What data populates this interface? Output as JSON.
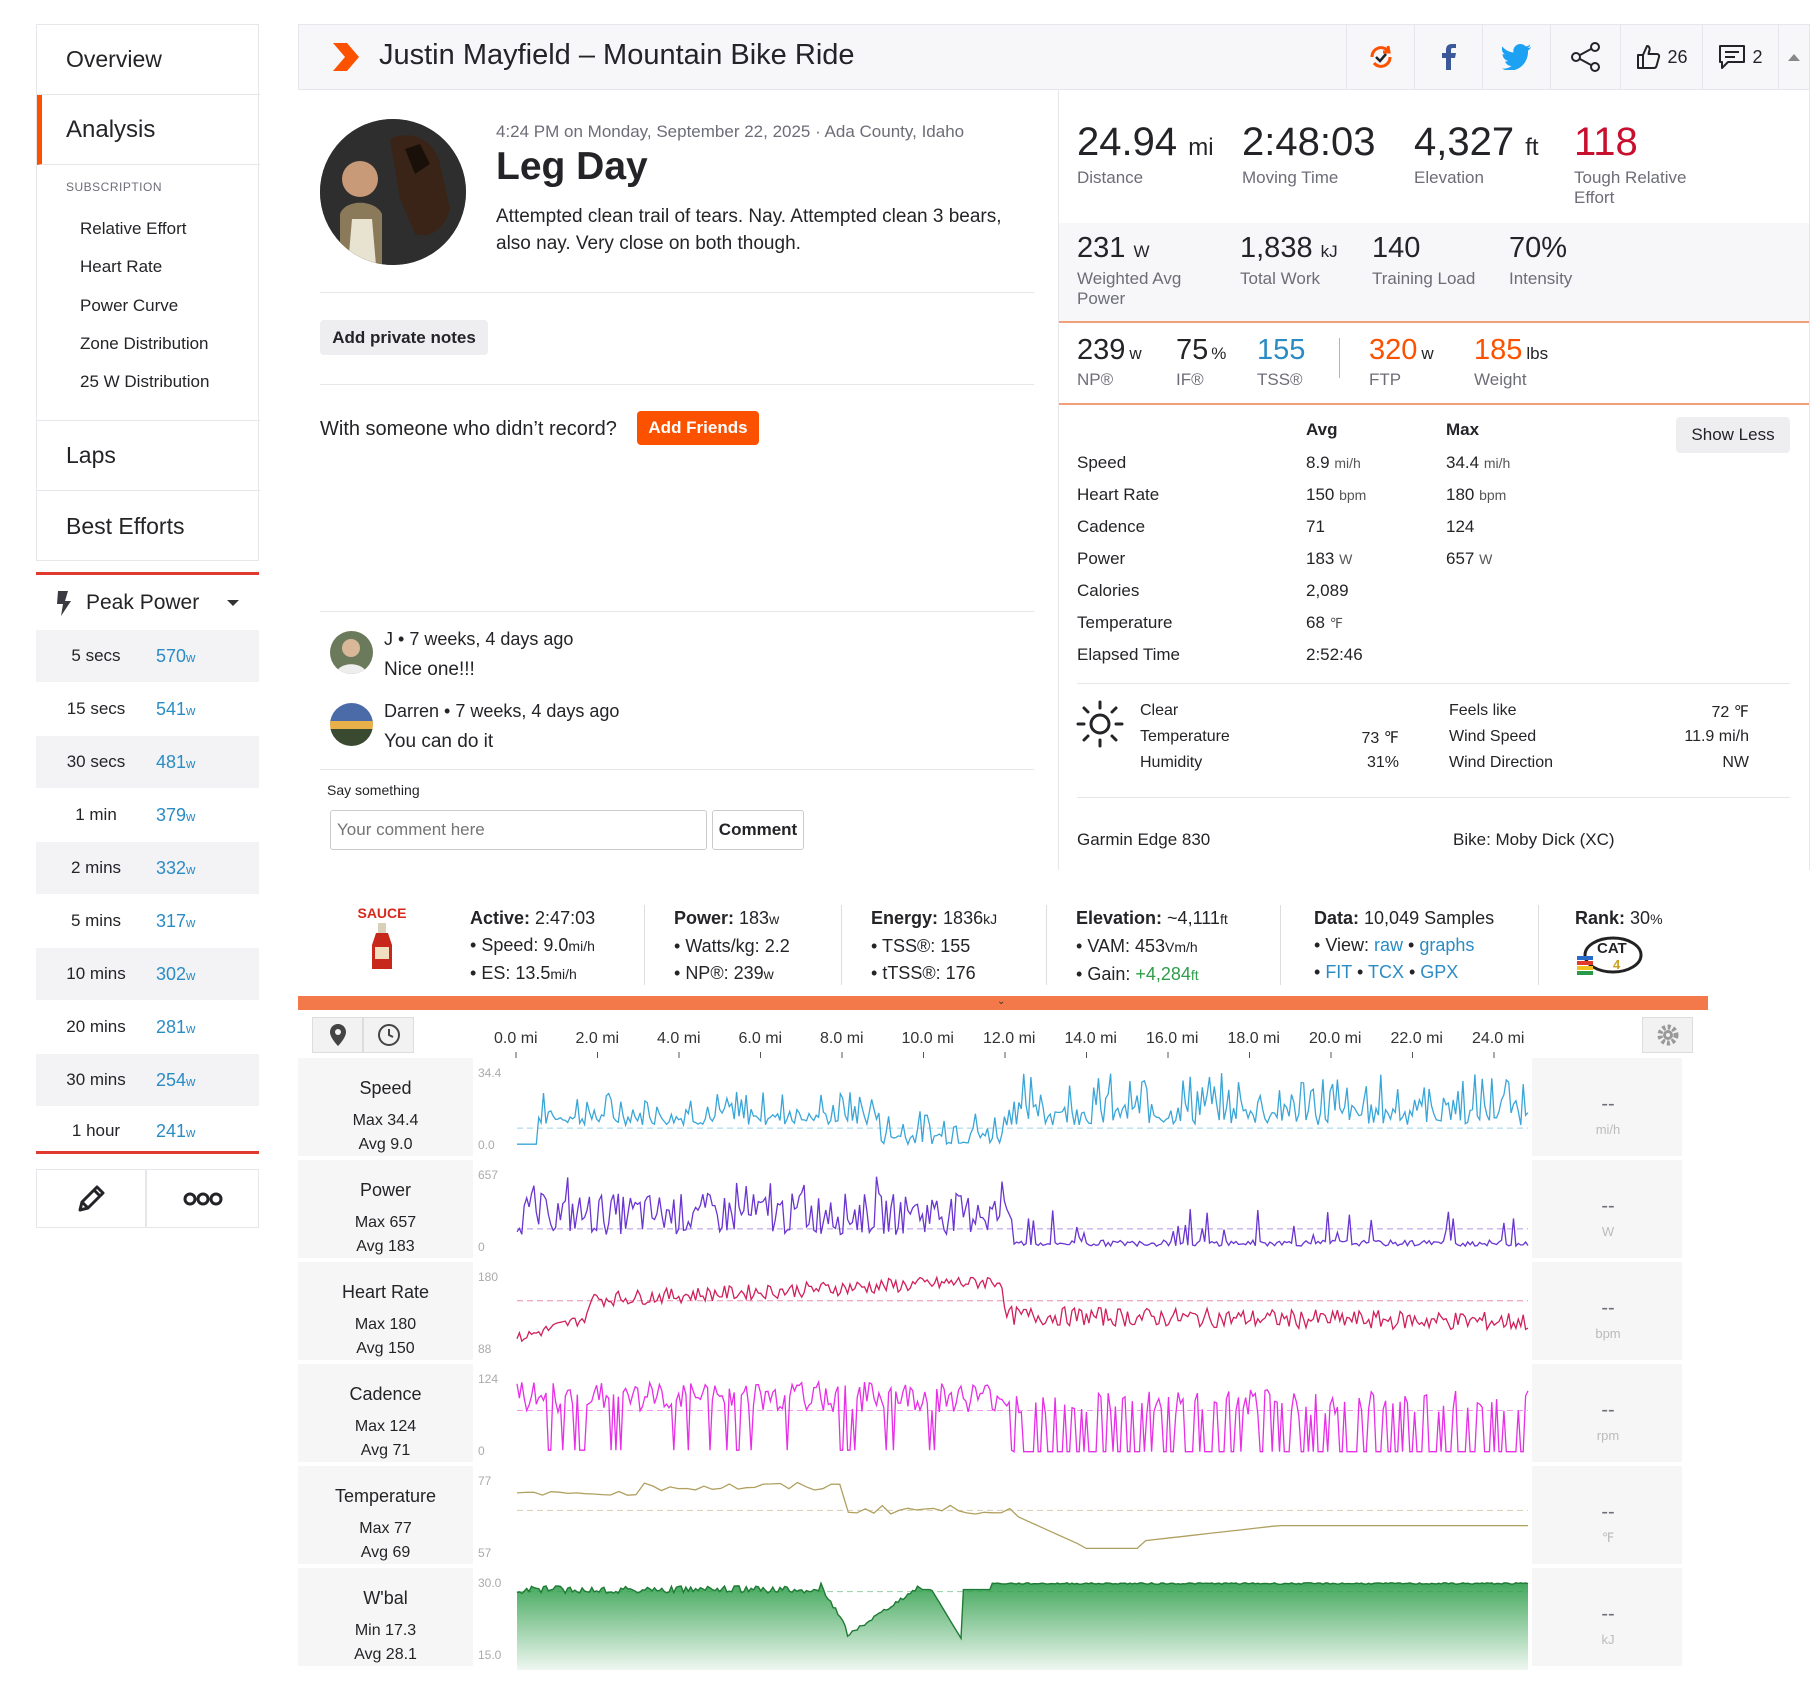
{
  "sidebar": {
    "overview": "Overview",
    "analysis": "Analysis",
    "subscription_heading": "SUBSCRIPTION",
    "sub_items": [
      "Relative Effort",
      "Heart Rate",
      "Power Curve",
      "Zone Distribution",
      "25 W Distribution"
    ],
    "laps": "Laps",
    "best_efforts": "Best Efforts",
    "peak_power_label": "Peak Power",
    "peak_rows": [
      {
        "dur": "5 secs",
        "val": "570",
        "unit": "w"
      },
      {
        "dur": "15 secs",
        "val": "541",
        "unit": "w"
      },
      {
        "dur": "30 secs",
        "val": "481",
        "unit": "w"
      },
      {
        "dur": "1 min",
        "val": "379",
        "unit": "w"
      },
      {
        "dur": "2 mins",
        "val": "332",
        "unit": "w"
      },
      {
        "dur": "5 mins",
        "val": "317",
        "unit": "w"
      },
      {
        "dur": "10 mins",
        "val": "302",
        "unit": "w"
      },
      {
        "dur": "20 mins",
        "val": "281",
        "unit": "w"
      },
      {
        "dur": "30 mins",
        "val": "254",
        "unit": "w"
      },
      {
        "dur": "1 hour",
        "val": "241",
        "unit": "w"
      }
    ]
  },
  "header": {
    "title": "Justin Mayfield – Mountain Bike Ride",
    "kudos_count": "26",
    "comments_count": "2"
  },
  "activity": {
    "meta": "4:24 PM on Monday, September 22, 2025 · Ada County, Idaho",
    "name": "Leg Day",
    "description": "Attempted clean trail of tears. Nay. Attempted clean 3 bears, also nay. Very close on both though.",
    "private_notes_btn": "Add private notes",
    "friends_prompt": "With someone who didn’t record?",
    "add_friends_btn": "Add Friends"
  },
  "comments": [
    {
      "author": "J",
      "time": "7 weeks, 4 days ago",
      "text": "Nice one!!!"
    },
    {
      "author": "Darren",
      "time": "7 weeks, 4 days ago",
      "text": "You can do it"
    }
  ],
  "comment_form": {
    "label": "Say something",
    "placeholder": "Your comment here",
    "button": "Comment"
  },
  "stats": {
    "primary": [
      {
        "value": "24.94",
        "unit": "mi",
        "label": "Distance"
      },
      {
        "value": "2:48:03",
        "unit": "",
        "label": "Moving Time"
      },
      {
        "value": "4,327",
        "unit": "ft",
        "label": "Elevation"
      },
      {
        "value": "118",
        "unit": "",
        "label": "Tough Relative Effort"
      }
    ],
    "secondary": [
      {
        "value": "231",
        "unit": "W",
        "label": "Weighted Avg Power"
      },
      {
        "value": "1,838",
        "unit": "kJ",
        "label": "Total Work"
      },
      {
        "value": "140",
        "unit": "",
        "label": "Training Load"
      },
      {
        "value": "70%",
        "unit": "",
        "label": "Intensity"
      }
    ],
    "tertiary": [
      {
        "value": "239",
        "unit": "w",
        "label": "NP®"
      },
      {
        "value": "75",
        "unit": "%",
        "label": "IF®"
      },
      {
        "value": "155",
        "unit": "",
        "label": "TSS®"
      },
      {
        "value": "320",
        "unit": "w",
        "label": "FTP"
      },
      {
        "value": "185",
        "unit": "lbs",
        "label": "Weight"
      }
    ],
    "show_less_btn": "Show Less",
    "table_headers": {
      "avg": "Avg",
      "max": "Max"
    },
    "table": [
      {
        "name": "Speed",
        "avg": "8.9",
        "avg_unit": "mi/h",
        "max": "34.4",
        "max_unit": "mi/h"
      },
      {
        "name": "Heart Rate",
        "avg": "150",
        "avg_unit": "bpm",
        "max": "180",
        "max_unit": "bpm"
      },
      {
        "name": "Cadence",
        "avg": "71",
        "avg_unit": "",
        "max": "124",
        "max_unit": ""
      },
      {
        "name": "Power",
        "avg": "183",
        "avg_unit": "W",
        "max": "657",
        "max_unit": "W"
      },
      {
        "name": "Calories",
        "avg": "2,089",
        "avg_unit": "",
        "max": "",
        "max_unit": ""
      },
      {
        "name": "Temperature",
        "avg": "68",
        "avg_unit": "℉",
        "max": "",
        "max_unit": ""
      },
      {
        "name": "Elapsed Time",
        "avg": "2:52:46",
        "avg_unit": "",
        "max": "",
        "max_unit": ""
      }
    ],
    "weather": {
      "condition": "Clear",
      "temp_label": "Temperature",
      "temp_val": "73 ℉",
      "humidity_label": "Humidity",
      "humidity_val": "31%",
      "feels_label": "Feels like",
      "feels_val": "72 ℉",
      "wind_speed_label": "Wind Speed",
      "wind_speed_val": "11.9 mi/h",
      "wind_dir_label": "Wind Direction",
      "wind_dir_val": "NW"
    },
    "device": "Garmin Edge 830",
    "bike": "Bike: Moby Dick (XC)"
  },
  "sauce": {
    "brand": "SAUCE",
    "active": {
      "label": "Active:",
      "value": "2:47:03",
      "speed_label": "Speed:",
      "speed": "9.0",
      "speed_unit": "mi/h",
      "es_label": "ES:",
      "es": "13.5",
      "es_unit": "mi/h"
    },
    "power": {
      "label": "Power:",
      "value": "183",
      "unit": "w",
      "wkg_label": "Watts/kg:",
      "wkg": "2.2",
      "np_label": "NP®:",
      "np": "239",
      "np_unit": "w"
    },
    "energy": {
      "label": "Energy:",
      "value": "1836",
      "unit": "kJ",
      "tss_label": "TSS®:",
      "tss": "155",
      "ttss_label": "tTSS®:",
      "ttss": "176"
    },
    "elevation": {
      "label": "Elevation:",
      "value": "~4,111",
      "unit": "ft",
      "vam_label": "VAM:",
      "vam": "453",
      "vam_unit": "Vm/h",
      "gain_label": "Gain:",
      "gain": "+4,284",
      "gain_unit": "ft"
    },
    "data": {
      "label": "Data:",
      "value": "10,049 Samples",
      "view_label": "View:",
      "raw": "raw",
      "graphs": "graphs",
      "fit": "FIT",
      "tcx": "TCX",
      "gpx": "GPX"
    },
    "rank": {
      "label": "Rank:",
      "value": "30",
      "unit": "%",
      "cat": "CAT",
      "cat_num": "4"
    }
  },
  "graph_axis": [
    "0.0 mi",
    "2.0 mi",
    "4.0 mi",
    "6.0 mi",
    "8.0 mi",
    "10.0 mi",
    "12.0 mi",
    "14.0 mi",
    "16.0 mi",
    "18.0 mi",
    "20.0 mi",
    "22.0 mi",
    "24.0 mi"
  ],
  "chart_data": [
    {
      "type": "line",
      "name": "Speed",
      "stat1": "Max 34.4",
      "stat2": "Avg 9.0",
      "ylim": [
        0.0,
        34.4
      ],
      "yticks": [
        "34.4",
        "0.0"
      ],
      "unit": "mi/h",
      "readout": "--",
      "color": "#3aa6d8",
      "avg": 9.0
    },
    {
      "type": "line",
      "name": "Power",
      "stat1": "Max 657",
      "stat2": "Avg 183",
      "ylim": [
        0,
        657
      ],
      "yticks": [
        "657",
        "0"
      ],
      "unit": "W",
      "readout": "--",
      "color": "#6a35d0",
      "avg": 183
    },
    {
      "type": "line",
      "name": "Heart Rate",
      "stat1": "Max 180",
      "stat2": "Avg 150",
      "ylim": [
        88,
        180
      ],
      "yticks": [
        "180",
        "88"
      ],
      "unit": "bpm",
      "readout": "--",
      "color": "#d0205a",
      "avg": 150
    },
    {
      "type": "line",
      "name": "Cadence",
      "stat1": "Max 124",
      "stat2": "Avg 71",
      "ylim": [
        0,
        124
      ],
      "yticks": [
        "124",
        "0"
      ],
      "unit": "rpm",
      "readout": "--",
      "color": "#e62fe6",
      "avg": 71
    },
    {
      "type": "line",
      "name": "Temperature",
      "stat1": "Max 77",
      "stat2": "Avg 69",
      "ylim": [
        57,
        77
      ],
      "yticks": [
        "77",
        "57"
      ],
      "unit": "℉",
      "readout": "--",
      "color": "#b0a060",
      "avg": 69
    },
    {
      "type": "area",
      "name": "W'bal",
      "stat1": "Min 17.3",
      "stat2": "Avg 28.1",
      "ylim": [
        15.0,
        30.0
      ],
      "yticks": [
        "30.0",
        "15.0"
      ],
      "unit": "kJ",
      "readout": "--",
      "color": "#2e9e4a",
      "avg": 28.1
    }
  ]
}
